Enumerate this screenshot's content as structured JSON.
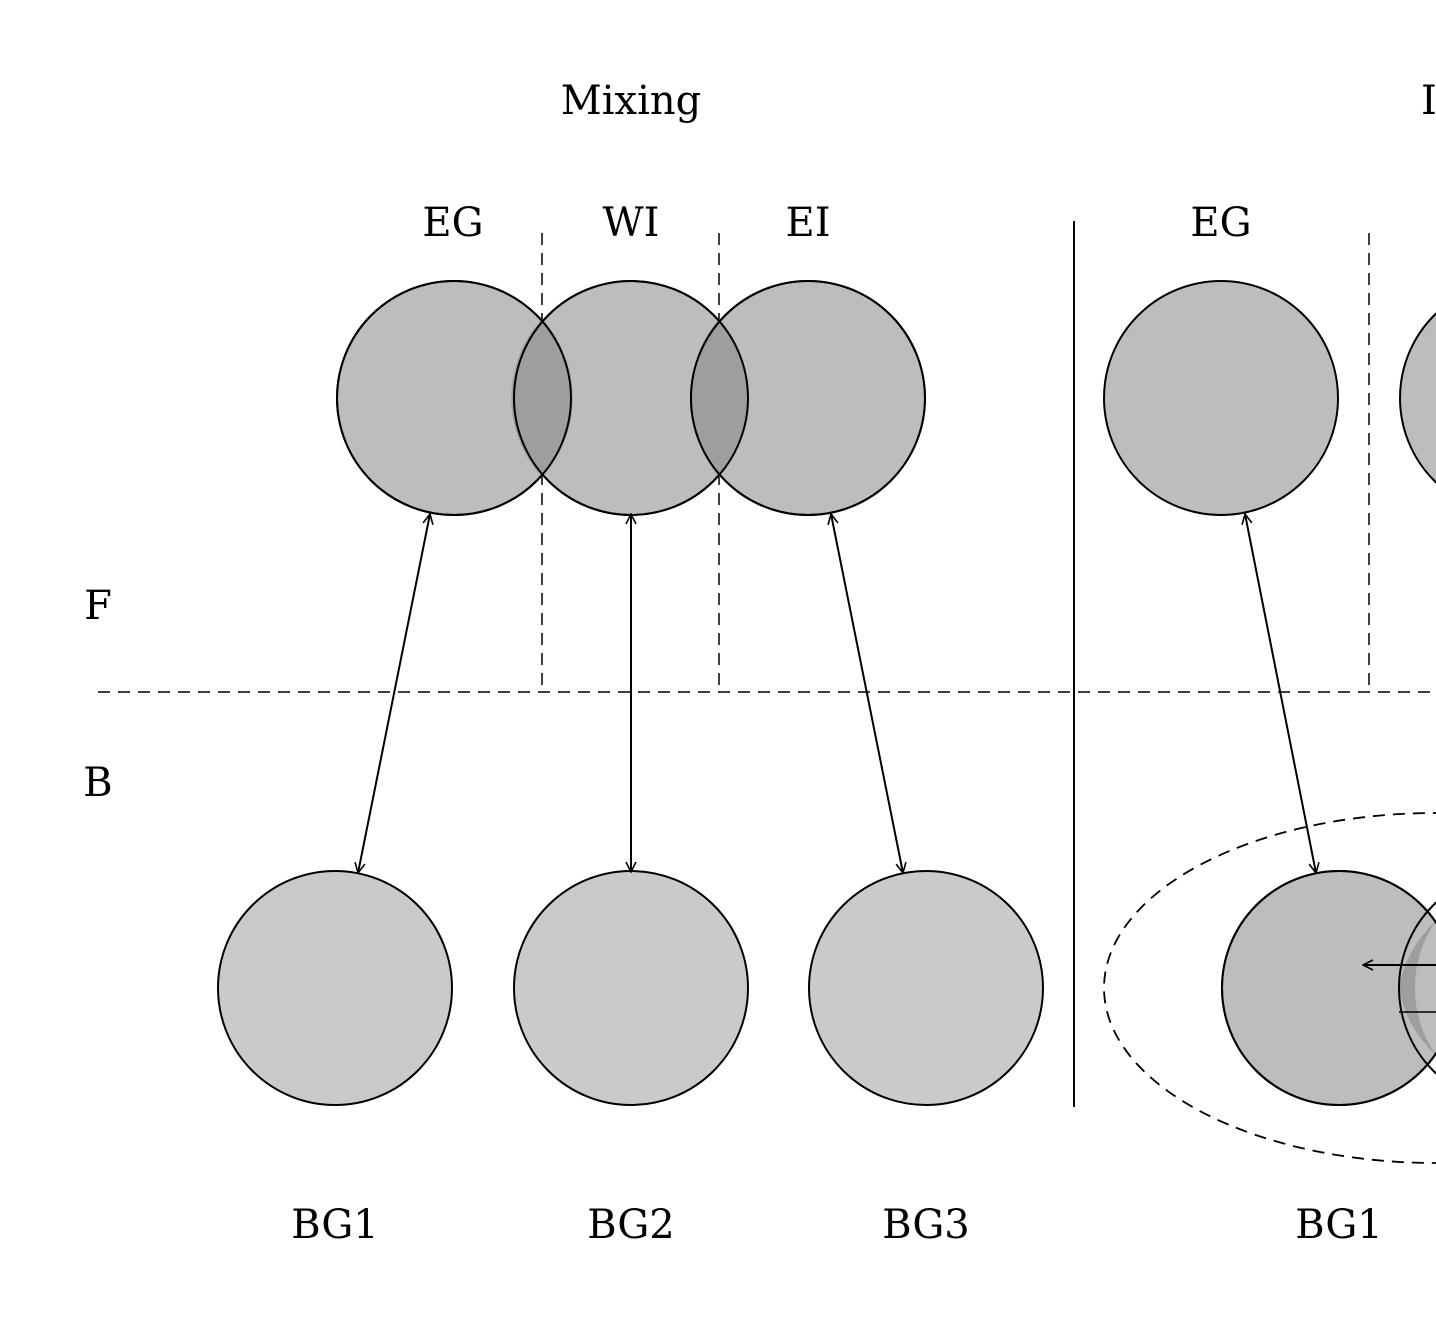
{
  "labels": {
    "left_title": "Mixing",
    "right_title_partial": "I",
    "top_region": "F",
    "bottom_region": "B"
  },
  "left_panel": {
    "top_nodes": [
      "EG",
      "WI",
      "EI"
    ],
    "bottom_nodes": [
      "BG1",
      "BG2",
      "BG3"
    ]
  },
  "right_panel": {
    "top_nodes": [
      "EG"
    ],
    "bottom_nodes": [
      "BG1"
    ]
  },
  "colors": {
    "circle_fill_top": "#bdbdbd",
    "circle_fill_bottom": "#cacaca",
    "overlap_fill": "#9e9e9e",
    "stroke": "#000000"
  }
}
